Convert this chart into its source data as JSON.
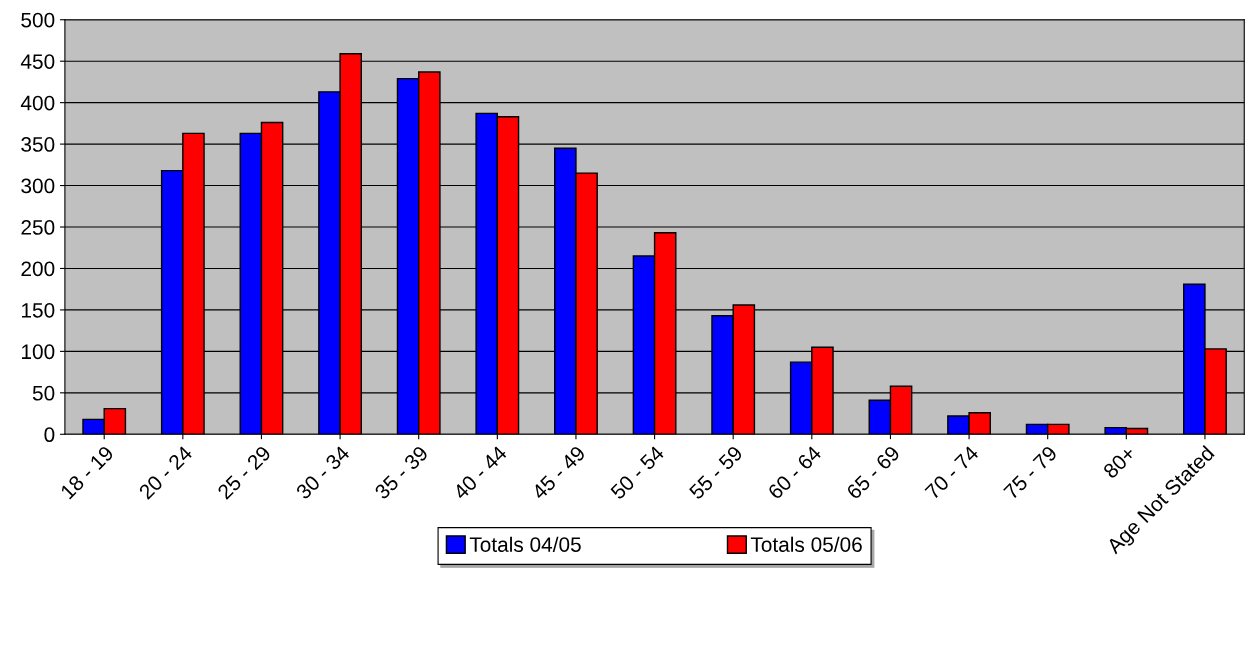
{
  "chart_data": {
    "type": "bar",
    "categories": [
      "18 - 19",
      "20 - 24",
      "25 - 29",
      "30 - 34",
      "35 - 39",
      "40 - 44",
      "45 - 49",
      "50 - 54",
      "55 - 59",
      "60 - 64",
      "65 - 69",
      "70 - 74",
      "75 - 79",
      "80+",
      "Age Not Stated"
    ],
    "series": [
      {
        "name": "Totals 04/05",
        "color": "#0000ff",
        "values": [
          18,
          318,
          363,
          413,
          429,
          387,
          345,
          215,
          143,
          87,
          41,
          22,
          12,
          8,
          181
        ]
      },
      {
        "name": "Totals 05/06",
        "color": "#ff0000",
        "values": [
          31,
          363,
          376,
          459,
          437,
          383,
          315,
          243,
          156,
          105,
          58,
          26,
          12,
          7,
          103
        ]
      }
    ],
    "ylim": [
      0,
      500
    ],
    "yticks": [
      0,
      50,
      100,
      150,
      200,
      250,
      300,
      350,
      400,
      450,
      500
    ],
    "grid": "y",
    "legend": "bottom"
  }
}
